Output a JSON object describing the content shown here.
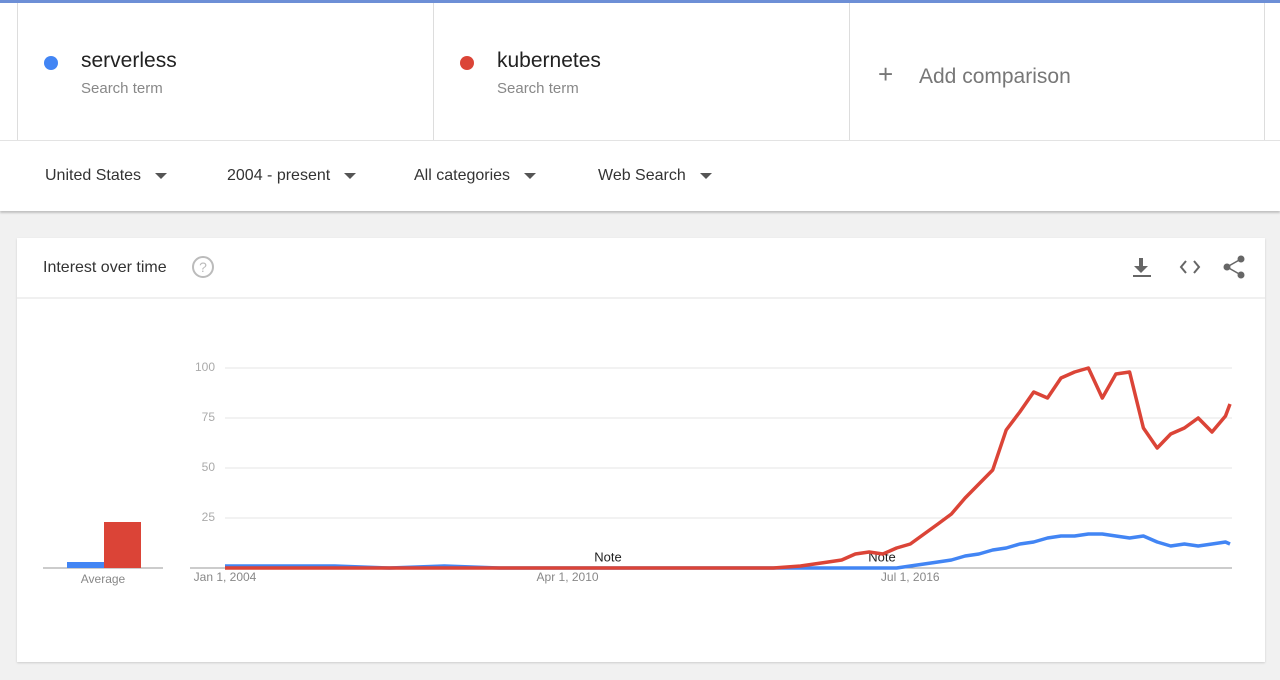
{
  "compare": {
    "term_types": [
      "Search term",
      "Search term"
    ],
    "add": "Add comparison"
  },
  "filters": [
    "United States",
    "2004 - present",
    "All categories",
    "Web Search"
  ],
  "chart_data": {
    "type": "line",
    "title": "Interest over time",
    "average_label": "Average",
    "annotations": [
      "Note",
      "Note"
    ],
    "xlim": [
      "2004-01-01",
      "2022-05-01"
    ],
    "xticks": [
      {
        "value": "2004-01-01",
        "label": "Jan 1, 2004"
      },
      {
        "value": "2010-04-01",
        "label": "Apr 1, 2010"
      },
      {
        "value": "2016-07-01",
        "label": "Jul 1, 2016"
      }
    ],
    "ylim": [
      0,
      100
    ],
    "yticks": [
      25,
      50,
      75,
      100
    ],
    "grid": true,
    "x": [
      "2004-01-01",
      "2005-01-01",
      "2006-01-01",
      "2007-01-01",
      "2008-01-01",
      "2009-01-01",
      "2010-01-01",
      "2011-01-01",
      "2012-01-01",
      "2013-01-01",
      "2014-01-01",
      "2014-07-01",
      "2014-10-01",
      "2015-01-01",
      "2015-04-01",
      "2015-07-01",
      "2015-10-01",
      "2016-01-01",
      "2016-04-01",
      "2016-07-01",
      "2016-10-01",
      "2017-01-01",
      "2017-04-01",
      "2017-07-01",
      "2017-10-01",
      "2018-01-01",
      "2018-04-01",
      "2018-07-01",
      "2018-10-01",
      "2019-01-01",
      "2019-04-01",
      "2019-07-01",
      "2019-10-01",
      "2020-01-01",
      "2020-04-01",
      "2020-07-01",
      "2020-10-01",
      "2021-01-01",
      "2021-04-01",
      "2021-07-01",
      "2021-10-01",
      "2022-01-01",
      "2022-04-01",
      "2022-05-01"
    ],
    "series": [
      {
        "name": "serverless",
        "color": "#4285f4",
        "average": 3,
        "values": [
          1,
          1,
          1,
          0,
          1,
          0,
          0,
          0,
          0,
          0,
          0,
          0,
          0,
          0,
          0,
          0,
          0,
          0,
          0,
          1,
          2,
          3,
          4,
          6,
          7,
          9,
          10,
          12,
          13,
          15,
          16,
          16,
          17,
          17,
          16,
          15,
          16,
          13,
          11,
          12,
          11,
          12,
          13,
          12
        ]
      },
      {
        "name": "kubernetes",
        "color": "#db4437",
        "average": 23,
        "values": [
          0,
          0,
          0,
          0,
          0,
          0,
          0,
          0,
          0,
          0,
          0,
          1,
          2,
          3,
          4,
          7,
          8,
          7,
          10,
          12,
          17,
          22,
          27,
          35,
          42,
          49,
          69,
          78,
          88,
          85,
          95,
          98,
          100,
          85,
          97,
          98,
          70,
          60,
          67,
          70,
          75,
          68,
          76,
          82
        ]
      }
    ]
  }
}
